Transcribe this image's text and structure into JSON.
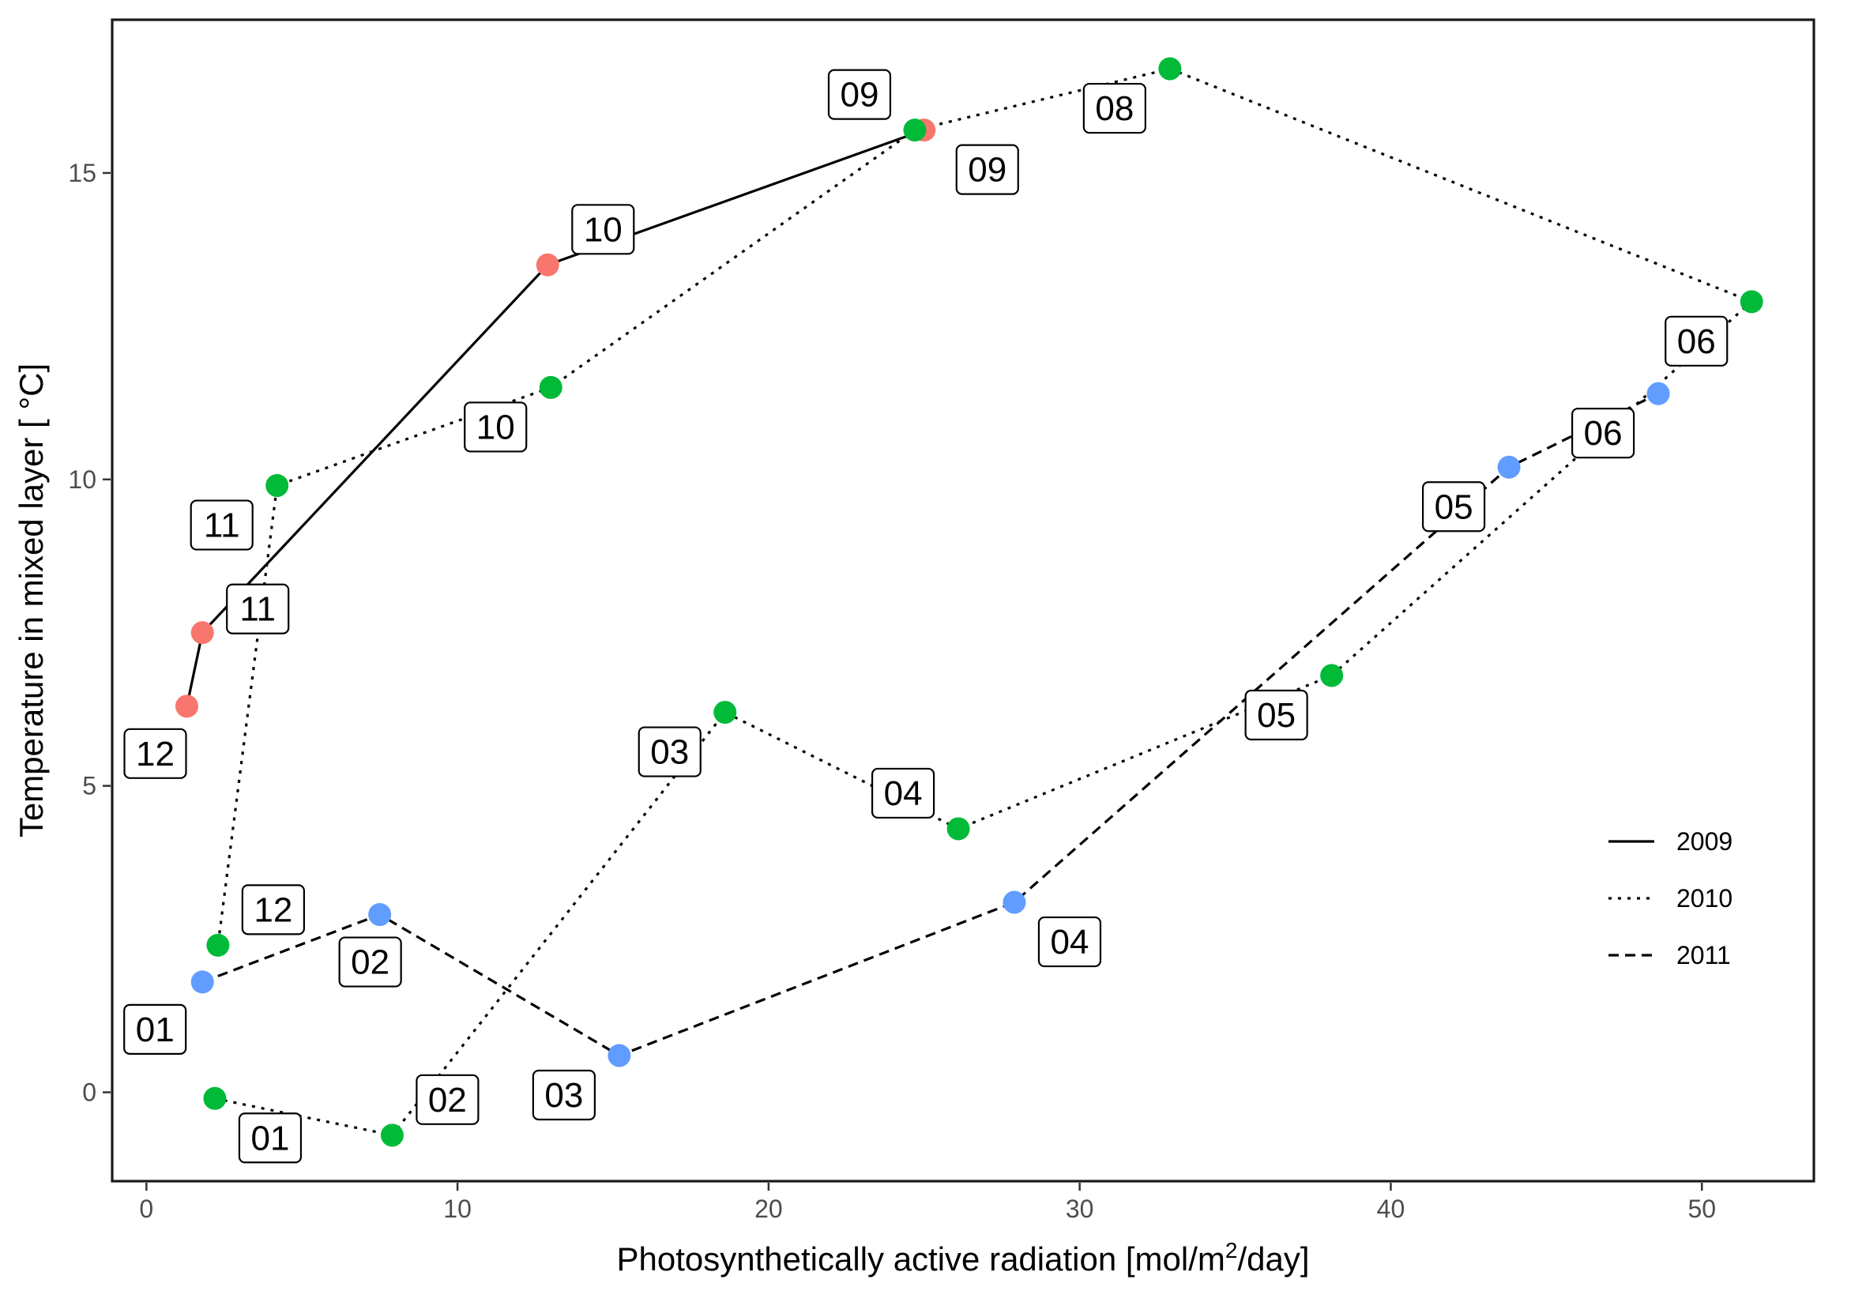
{
  "chart_data": {
    "type": "line",
    "xlabel": "Photosynthetically active radiation [mol/m2/day]",
    "xlabel_parts": {
      "main": "Photosynthetically active radiation [mol/m",
      "sup": "2",
      "tail": "/day]"
    },
    "ylabel": "Temperature in mixed layer [ °C]",
    "xlim": [
      -1.1,
      53.6
    ],
    "ylim": [
      -1.45,
      17.5
    ],
    "xticks": [
      0,
      10,
      20,
      30,
      40,
      50
    ],
    "yticks": [
      0,
      5,
      10,
      15
    ],
    "grid": false,
    "legend_position": "right",
    "colors": {
      "2009": "#F8766D",
      "2010": "#00BA38",
      "2011": "#619CFF"
    },
    "series": [
      {
        "name": "2009",
        "line": "solid",
        "color": "#F8766D",
        "points": [
          {
            "x": 25.0,
            "y": 15.7,
            "label": "09"
          },
          {
            "x": 12.9,
            "y": 13.5,
            "label": "10"
          },
          {
            "x": 1.8,
            "y": 7.5,
            "label": "11"
          },
          {
            "x": 1.3,
            "y": 6.3,
            "label": "12"
          }
        ]
      },
      {
        "name": "2010",
        "line": "dotted",
        "color": "#00BA38",
        "points": [
          {
            "x": 2.2,
            "y": -0.1,
            "label": "01"
          },
          {
            "x": 7.9,
            "y": -0.7,
            "label": "02"
          },
          {
            "x": 18.6,
            "y": 6.2,
            "label": "03"
          },
          {
            "x": 26.1,
            "y": 4.3,
            "label": "04"
          },
          {
            "x": 38.1,
            "y": 6.8,
            "label": "05"
          },
          {
            "x": 51.6,
            "y": 12.9,
            "label": "06"
          },
          {
            "x": 32.9,
            "y": 16.7,
            "label": "08"
          },
          {
            "x": 24.7,
            "y": 15.7,
            "label": "09"
          },
          {
            "x": 13.0,
            "y": 11.5,
            "label": "10"
          },
          {
            "x": 4.2,
            "y": 9.9,
            "label": "11"
          },
          {
            "x": 2.3,
            "y": 2.4,
            "label": "12"
          }
        ]
      },
      {
        "name": "2011",
        "line": "dashed",
        "color": "#619CFF",
        "points": [
          {
            "x": 1.8,
            "y": 1.8,
            "label": "01"
          },
          {
            "x": 7.5,
            "y": 2.9,
            "label": "02"
          },
          {
            "x": 15.2,
            "y": 0.6,
            "label": "03"
          },
          {
            "x": 27.9,
            "y": 3.1,
            "label": "04"
          },
          {
            "x": 43.8,
            "y": 10.2,
            "label": "05"
          },
          {
            "x": 48.6,
            "y": 11.4,
            "label": "06"
          }
        ]
      }
    ]
  }
}
